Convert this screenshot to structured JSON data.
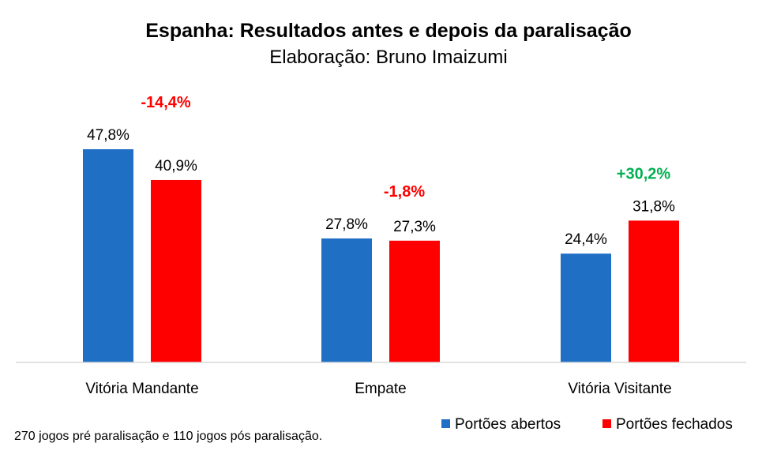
{
  "chart_data": {
    "type": "bar",
    "title": "Espanha: Resultados antes e depois da paralisação",
    "subtitle": "Elaboração: Bruno Imaizumi",
    "categories": [
      "Vitória Mandante",
      "Empate",
      "Vitória Visitante"
    ],
    "series": [
      {
        "name": "Portões abertos",
        "color": "#1F6FC5",
        "values": [
          47.8,
          27.8,
          24.4
        ],
        "labels": [
          "47,8%",
          "27,8%",
          "24,4%"
        ]
      },
      {
        "name": "Portões fechados",
        "color": "#FF0000",
        "values": [
          40.9,
          27.3,
          31.8
        ],
        "labels": [
          "40,9%",
          "27,3%",
          "31,8%"
        ]
      }
    ],
    "changes": [
      {
        "label": "-14,4%",
        "color": "#FF0000"
      },
      {
        "label": "-1,8%",
        "color": "#FF0000"
      },
      {
        "label": "+30,2%",
        "color": "#00B050"
      }
    ],
    "ylim": [
      0,
      55
    ],
    "grid": false,
    "legend_position": "bottom-right",
    "note": "270 jogos pré paralisação e 110 jogos pós paralisação."
  }
}
